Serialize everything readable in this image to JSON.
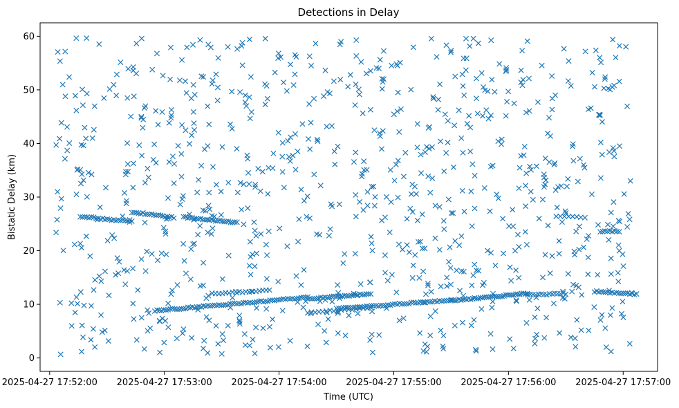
{
  "chart_data": {
    "type": "scatter",
    "title": "Detections in Delay",
    "xlabel": "Time (UTC)",
    "ylabel": "Bistatic Delay (km)",
    "marker": "x",
    "color": "#1f77b4",
    "grid": false,
    "legend": "none",
    "xlim": [
      "2025-04-27 17:51:55",
      "2025-04-27 17:57:18"
    ],
    "ylim": [
      -2.5,
      62.5
    ],
    "x_ticks": [
      "2025-04-27 17:52:00",
      "2025-04-27 17:53:00",
      "2025-04-27 17:54:00",
      "2025-04-27 17:55:00",
      "2025-04-27 17:56:00",
      "2025-04-27 17:57:00"
    ],
    "y_ticks": [
      "0",
      "10",
      "20",
      "30",
      "40",
      "50",
      "60"
    ],
    "tracks": [
      {
        "t_start": "2025-04-27 17:52:16",
        "t_end": "2025-04-27 17:52:43",
        "y_start": 26.4,
        "y_end": 25.4,
        "points": 24
      },
      {
        "t_start": "2025-04-27 17:52:43",
        "t_end": "2025-04-27 17:53:05",
        "y_start": 27.2,
        "y_end": 26.2,
        "points": 20
      },
      {
        "t_start": "2025-04-27 17:53:10",
        "t_end": "2025-04-27 17:53:38",
        "y_start": 26.3,
        "y_end": 25.2,
        "points": 26
      },
      {
        "t_start": "2025-04-27 17:52:55",
        "t_end": "2025-04-27 17:54:15",
        "y_start": 8.8,
        "y_end": 11.3,
        "points": 70
      },
      {
        "t_start": "2025-04-27 17:53:25",
        "t_end": "2025-04-27 17:53:55",
        "y_start": 12.0,
        "y_end": 12.6,
        "points": 18
      },
      {
        "t_start": "2025-04-27 17:54:15",
        "t_end": "2025-04-27 17:54:48",
        "y_start": 11.0,
        "y_end": 12.0,
        "points": 30
      },
      {
        "t_start": "2025-04-27 17:54:15",
        "t_end": "2025-04-27 17:54:48",
        "y_start": 8.5,
        "y_end": 9.3,
        "points": 18
      },
      {
        "t_start": "2025-04-27 17:54:30",
        "t_end": "2025-04-27 17:55:30",
        "y_start": 9.2,
        "y_end": 10.8,
        "points": 50
      },
      {
        "t_start": "2025-04-27 17:55:30",
        "t_end": "2025-04-27 17:56:10",
        "y_start": 10.7,
        "y_end": 12.0,
        "points": 40
      },
      {
        "t_start": "2025-04-27 17:56:10",
        "t_end": "2025-04-27 17:56:30",
        "y_start": 11.8,
        "y_end": 12.0,
        "points": 15
      },
      {
        "t_start": "2025-04-27 17:56:25",
        "t_end": "2025-04-27 17:56:40",
        "y_start": 26.5,
        "y_end": 26.2,
        "points": 8
      },
      {
        "t_start": "2025-04-27 17:56:45",
        "t_end": "2025-04-27 17:57:07",
        "y_start": 12.4,
        "y_end": 11.9,
        "points": 20
      },
      {
        "t_start": "2025-04-27 17:56:48",
        "t_end": "2025-04-27 17:56:58",
        "y_start": 23.6,
        "y_end": 23.6,
        "points": 9
      }
    ],
    "scattered": {
      "t_range": [
        "2025-04-27 17:52:03",
        "2025-04-27 17:57:05"
      ],
      "y_range": [
        0.5,
        59.8
      ],
      "points": 900
    }
  }
}
